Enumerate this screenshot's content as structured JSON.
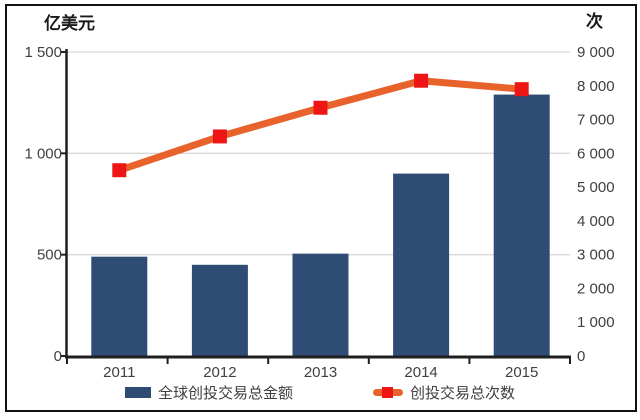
{
  "figure": {
    "background": "#ffffff",
    "border_color": "#111111"
  },
  "chart_data": {
    "type": "bar+line combo, dual axis",
    "categories": [
      "2011",
      "2012",
      "2013",
      "2014",
      "2015"
    ],
    "series": [
      {
        "name": "全球创投交易总金额",
        "type": "bar",
        "axis": "left",
        "values": [
          490,
          450,
          505,
          900,
          1290
        ],
        "color": "#2E4C74"
      },
      {
        "name": "创投交易总次数",
        "type": "line",
        "axis": "right",
        "values": [
          5500,
          6500,
          7350,
          8150,
          7900
        ],
        "color": "#E8622B",
        "marker": "square",
        "marker_color": "#EE1515"
      }
    ],
    "left_axis": {
      "title": "亿美元",
      "min": 0,
      "max": 1500,
      "ticks": [
        0,
        500,
        1000,
        1500
      ],
      "tick_labels": [
        "0",
        "500",
        "1 000",
        "1 500"
      ]
    },
    "right_axis": {
      "title": "次",
      "min": 0,
      "max": 9000,
      "ticks": [
        0,
        1000,
        2000,
        3000,
        4000,
        5000,
        6000,
        7000,
        8000,
        9000
      ],
      "tick_labels": [
        "0",
        "1 000",
        "2 000",
        "3 000",
        "4 000",
        "5 000",
        "6 000",
        "7 000",
        "8 000",
        "9 000"
      ]
    },
    "grid": {
      "horizontal_at_left_ticks": true,
      "color": "#D8D8D8"
    },
    "axis_line_color": "#1f1f1f",
    "tick_label_color": "#404040",
    "legend_position": "bottom"
  },
  "legend": {
    "items": [
      {
        "label": "全球创投交易总金额"
      },
      {
        "label": "创投交易总次数"
      }
    ]
  }
}
